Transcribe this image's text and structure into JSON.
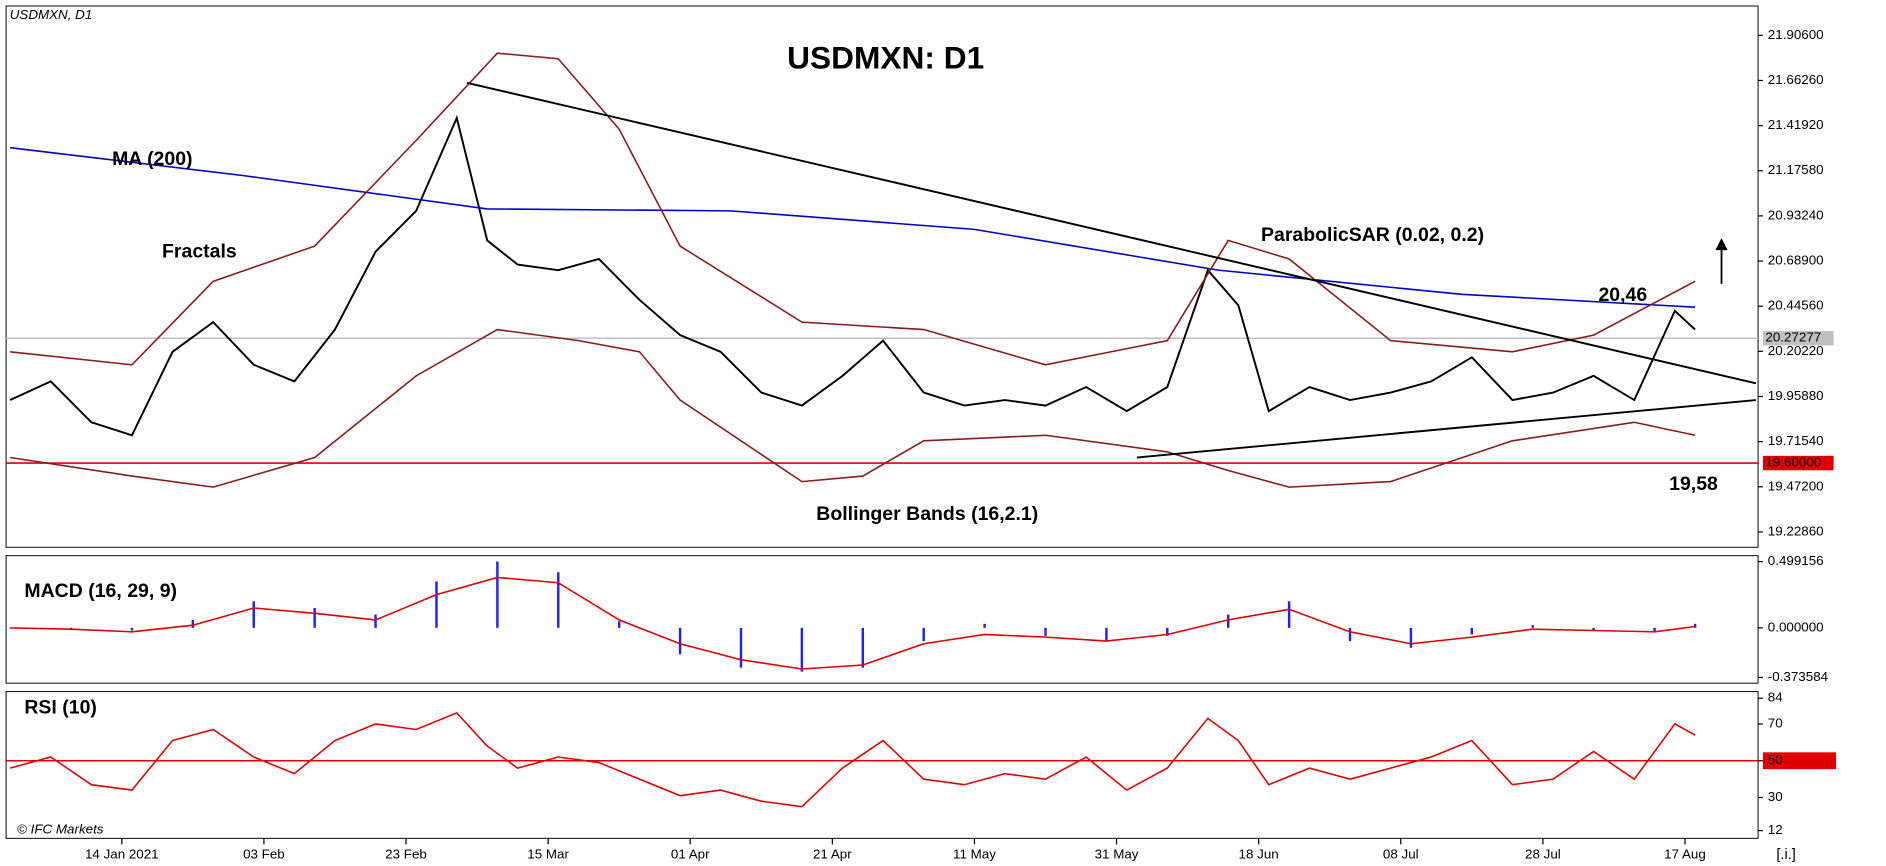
{
  "chart_data": [
    {
      "type": "line",
      "title": "USDMXN: D1",
      "label": "USDMXN, D1",
      "xlim": [
        -0.4,
        172.2
      ],
      "xticks": [
        {
          "value": 11,
          "label": "14 Jan 2021"
        },
        {
          "value": 25,
          "label": "03 Feb"
        },
        {
          "value": 39,
          "label": "23 Feb"
        },
        {
          "value": 53,
          "label": "15 Mar"
        },
        {
          "value": 67,
          "label": "01 Apr"
        },
        {
          "value": 81,
          "label": "21 Apr"
        },
        {
          "value": 95,
          "label": "11 May"
        },
        {
          "value": 109,
          "label": "31 May"
        },
        {
          "value": 123,
          "label": "18 Jun"
        },
        {
          "value": 137,
          "label": "08 Jul"
        },
        {
          "value": 151,
          "label": "28 Jul"
        },
        {
          "value": 165,
          "label": "17 Aug"
        }
      ],
      "ylim": [
        19.146,
        22.064
      ],
      "yticks": [
        {
          "value": 21.906,
          "label": "21.90600"
        },
        {
          "value": 21.6626,
          "label": "21.66260"
        },
        {
          "value": 21.4192,
          "label": "21.41920"
        },
        {
          "value": 21.1758,
          "label": "21.17580"
        },
        {
          "value": 20.9324,
          "label": "20.93240"
        },
        {
          "value": 20.689,
          "label": "20.68900"
        },
        {
          "value": 20.4456,
          "label": "20.44560"
        },
        {
          "value": 20.2022,
          "label": "20.20220"
        },
        {
          "value": 19.9588,
          "label": "19.95880"
        },
        {
          "value": 19.7154,
          "label": "19.71540"
        },
        {
          "value": 19.472,
          "label": "19.47200"
        },
        {
          "value": 19.2286,
          "label": "19.22860"
        }
      ],
      "series": [
        {
          "color": "#000000",
          "x": [
            0,
            4,
            8,
            12,
            16,
            20,
            24,
            28,
            32,
            36,
            40,
            44,
            47,
            50,
            54,
            58,
            62,
            66,
            70,
            74,
            78,
            82,
            86,
            90,
            94,
            98,
            102,
            106,
            110,
            114,
            118,
            121,
            124,
            128,
            132,
            136,
            140,
            144,
            148,
            152,
            156,
            160,
            164,
            166
          ],
          "values": [
            19.94,
            20.04,
            19.82,
            19.75,
            20.2,
            20.36,
            20.13,
            20.04,
            20.32,
            20.74,
            20.96,
            21.46,
            20.8,
            20.67,
            20.64,
            20.7,
            20.48,
            20.29,
            20.2,
            19.98,
            19.91,
            20.07,
            20.26,
            19.98,
            19.91,
            19.94,
            19.91,
            20.01,
            19.88,
            20.01,
            20.64,
            20.45,
            19.88,
            20.01,
            19.94,
            19.98,
            20.04,
            20.17,
            19.94,
            19.98,
            20.07,
            19.94,
            20.42,
            20.32
          ]
        },
        {
          "color": "#0000cc",
          "x": [
            0,
            23,
            47,
            71,
            95,
            119,
            143,
            166
          ],
          "values": [
            21.3,
            21.15,
            20.97,
            20.96,
            20.86,
            20.64,
            20.51,
            20.44
          ]
        },
        {
          "color": "#8b1a1a",
          "x": [
            0,
            12,
            20,
            30,
            40,
            48,
            54,
            60,
            66,
            78,
            90,
            102,
            114,
            120,
            126,
            136,
            148,
            156,
            166
          ],
          "values": [
            20.2,
            20.13,
            20.58,
            20.77,
            21.34,
            21.81,
            21.78,
            21.4,
            20.77,
            20.36,
            20.32,
            20.13,
            20.26,
            20.8,
            20.7,
            20.26,
            20.2,
            20.29,
            20.58
          ]
        },
        {
          "color": "#8b1a1a",
          "x": [
            0,
            12,
            20,
            30,
            40,
            48,
            56,
            62,
            66,
            78,
            84,
            90,
            102,
            114,
            120,
            126,
            136,
            148,
            160,
            166
          ],
          "values": [
            19.63,
            19.53,
            19.47,
            19.63,
            20.07,
            20.32,
            20.26,
            20.2,
            19.94,
            19.5,
            19.53,
            19.72,
            19.75,
            19.66,
            19.56,
            19.47,
            19.5,
            19.72,
            19.82,
            19.75
          ]
        }
      ],
      "trendlines": [
        {
          "x": [
            45,
            172
          ],
          "y": [
            21.65,
            20.03
          ]
        },
        {
          "x": [
            111,
            172
          ],
          "y": [
            19.63,
            19.94
          ]
        }
      ],
      "hlines": [
        {
          "value": 19.6,
          "label": "19.60000",
          "color": "#e00000"
        },
        {
          "value": 20.27277,
          "label": "20.27277",
          "color": "#c0c0c0"
        }
      ],
      "annotations": [
        "MA (200)",
        "Fractals",
        "ParabolicSAR (0.02, 0.2)",
        "Bollinger Bands (16,2.1)",
        "20,46",
        "19,58"
      ]
    },
    {
      "type": "macd",
      "title": "MACD (16, 29, 9)",
      "ylim": [
        -0.417,
        0.544
      ],
      "yticks": [
        0.499156,
        {
          "value": 0,
          "label": "0.000000"
        },
        -0.373584
      ],
      "series": [
        {
          "type": "bar",
          "color": "#2020ff",
          "x": [
            0,
            6,
            12,
            18,
            24,
            30,
            36,
            42,
            48,
            54,
            60,
            66,
            72,
            78,
            84,
            90,
            96,
            102,
            108,
            114,
            120,
            126,
            132,
            138,
            144,
            150,
            156,
            162,
            166
          ],
          "values": [
            0,
            -0.01,
            -0.02,
            0.06,
            0.2,
            0.15,
            0.1,
            0.35,
            0.5,
            0.42,
            0.05,
            -0.2,
            -0.3,
            -0.33,
            -0.3,
            -0.1,
            0.03,
            -0.06,
            -0.1,
            -0.06,
            0.1,
            0.2,
            -0.1,
            -0.15,
            -0.05,
            0.02,
            -0.02,
            -0.03,
            0.03
          ]
        },
        {
          "type": "line",
          "color": "#e00000",
          "x": [
            0,
            6,
            12,
            18,
            24,
            30,
            36,
            42,
            48,
            54,
            60,
            66,
            72,
            78,
            84,
            90,
            96,
            102,
            108,
            114,
            120,
            126,
            132,
            138,
            144,
            150,
            156,
            162,
            166
          ],
          "values": [
            0,
            -0.01,
            -0.03,
            0.02,
            0.15,
            0.11,
            0.06,
            0.25,
            0.38,
            0.34,
            0.06,
            -0.12,
            -0.24,
            -0.31,
            -0.28,
            -0.12,
            -0.05,
            -0.07,
            -0.1,
            -0.05,
            0.06,
            0.14,
            -0.03,
            -0.12,
            -0.07,
            -0.01,
            -0.02,
            -0.03,
            0.01
          ]
        }
      ]
    },
    {
      "type": "line",
      "title": "RSI (10)",
      "ylim": [
        7.8,
        87.6
      ],
      "yticks": [
        84,
        70,
        50,
        30,
        12
      ],
      "hlines": [
        {
          "value": 50,
          "color": "#e00000"
        }
      ],
      "series": [
        {
          "color": "#e00000",
          "x": [
            0,
            4,
            8,
            12,
            16,
            20,
            24,
            28,
            32,
            36,
            40,
            44,
            47,
            50,
            54,
            58,
            62,
            66,
            70,
            74,
            78,
            82,
            86,
            90,
            94,
            98,
            102,
            106,
            110,
            114,
            118,
            121,
            124,
            128,
            132,
            136,
            140,
            144,
            148,
            152,
            156,
            160,
            164,
            166
          ],
          "values": [
            46,
            52,
            37,
            34,
            61,
            67,
            52,
            43,
            61,
            70,
            67,
            76,
            58,
            46,
            52,
            49,
            40,
            31,
            34,
            28,
            25,
            46,
            61,
            40,
            37,
            43,
            40,
            52,
            34,
            46,
            73,
            61,
            37,
            46,
            40,
            46,
            52,
            61,
            37,
            40,
            55,
            40,
            70,
            64
          ]
        }
      ]
    }
  ],
  "footer": {
    "copyright": "© IFC Markets",
    "info": "[.i.]"
  }
}
